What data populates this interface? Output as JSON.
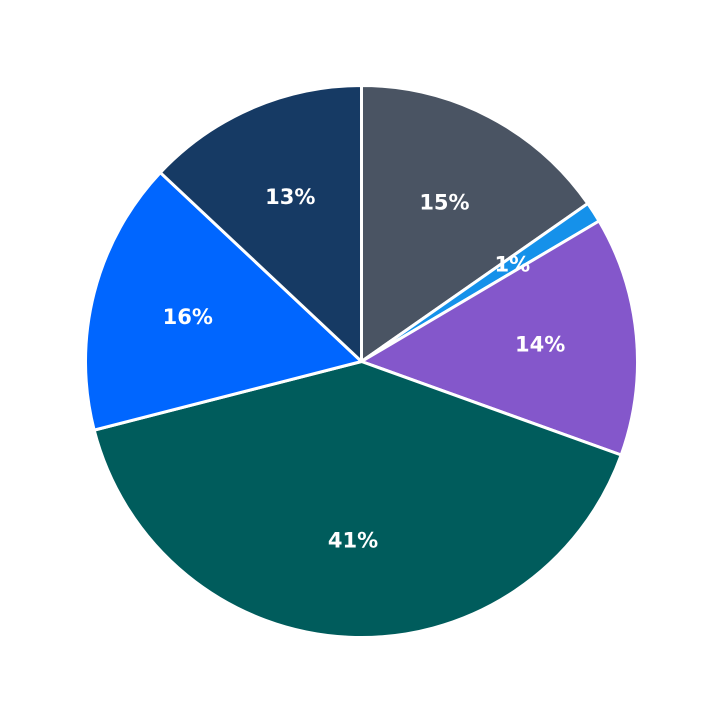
{
  "chart_data": {
    "type": "pie",
    "title": "",
    "start": "top",
    "direction": "clockwise",
    "slices": [
      {
        "value": 15.3,
        "label": "15%",
        "color": "#4a5463"
      },
      {
        "value": 1.2,
        "label": "1%",
        "color": "#1591ea"
      },
      {
        "value": 14.0,
        "label": "14%",
        "color": "#8457cb"
      },
      {
        "value": 40.5,
        "label": "41%",
        "color": "#005c5c"
      },
      {
        "value": 16.0,
        "label": "16%",
        "color": "#0066ff"
      },
      {
        "value": 13.0,
        "label": "13%",
        "color": "#163a64"
      }
    ]
  }
}
